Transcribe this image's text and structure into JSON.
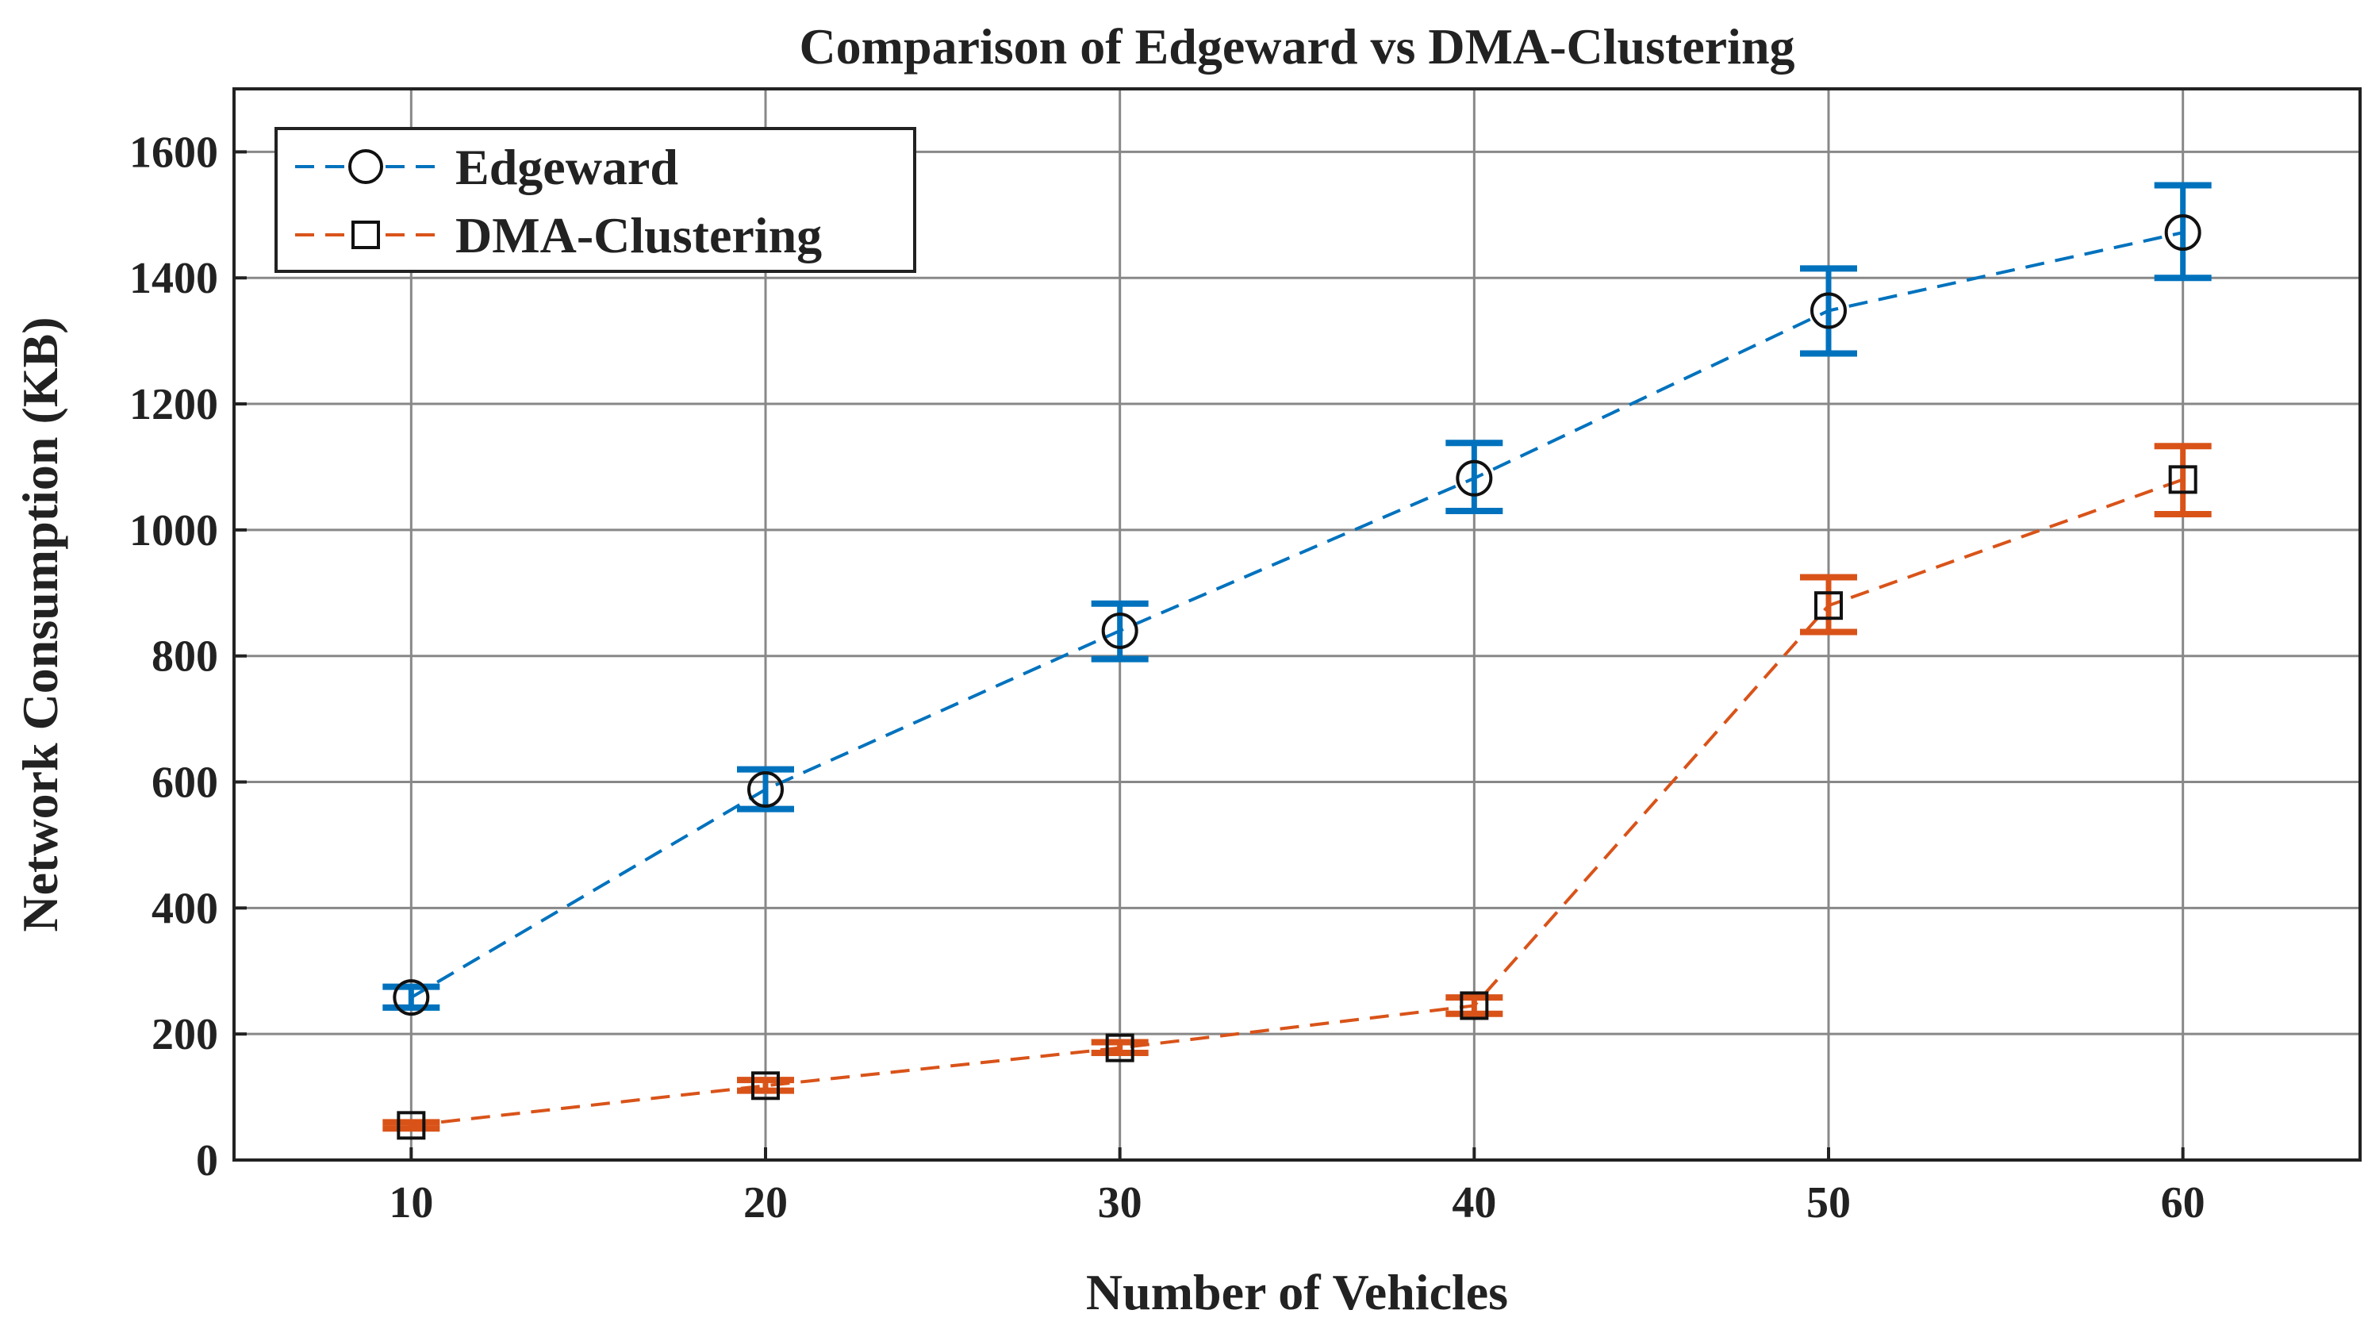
{
  "chart_data": {
    "type": "line",
    "title": "Comparison of Edgeward vs DMA-Clustering",
    "xlabel": "Number of Vehicles",
    "ylabel": "Network Consumption (KB)",
    "x": [
      10,
      20,
      30,
      40,
      50,
      60
    ],
    "xlim": [
      5,
      65
    ],
    "ylim": [
      0,
      1700
    ],
    "xticks": [
      "10",
      "20",
      "30",
      "40",
      "50",
      "60"
    ],
    "yticks": [
      "0",
      "200",
      "400",
      "600",
      "800",
      "1000",
      "1200",
      "1400",
      "1600"
    ],
    "grid": true,
    "legend_position": "top-left",
    "series": [
      {
        "name": "Edgeward",
        "color": "#0072BD",
        "marker": "circle",
        "line_style": "dashed",
        "values": [
          258,
          588,
          840,
          1082,
          1348,
          1472
        ],
        "error_low": [
          242,
          557,
          795,
          1030,
          1280,
          1400
        ],
        "error_high": [
          275,
          620,
          883,
          1138,
          1415,
          1547
        ]
      },
      {
        "name": "DMA-Clustering",
        "color": "#D95319",
        "marker": "square",
        "line_style": "dashed",
        "values": [
          55,
          118,
          178,
          245,
          880,
          1080
        ],
        "error_low": [
          50,
          110,
          170,
          232,
          838,
          1025
        ],
        "error_high": [
          60,
          127,
          187,
          258,
          925,
          1133
        ]
      }
    ]
  }
}
